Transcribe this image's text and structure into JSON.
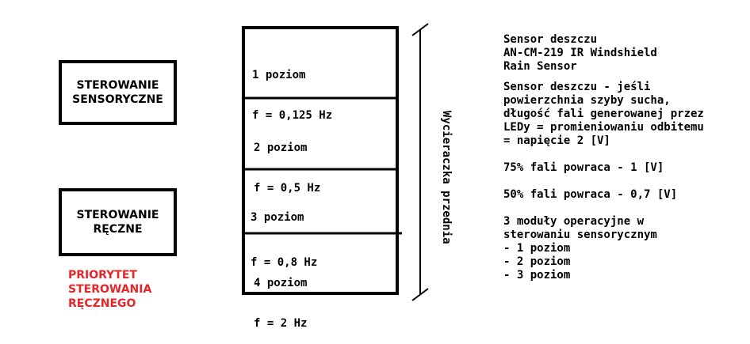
{
  "left_boxes": {
    "sensor": [
      "STEROWANIE",
      "SENSORYCZNE"
    ],
    "manual": [
      "STEROWANIE",
      "RĘCZNE"
    ]
  },
  "priority_note": [
    "PRIORYTET",
    "STEROWANIA",
    "RĘCZNEGO"
  ],
  "levels": [
    {
      "name": "1 poziom",
      "freq": "f = 0,125 Hz"
    },
    {
      "name": "2 poziom",
      "freq": "f = 0,5 Hz"
    },
    {
      "name": "3 poziom",
      "freq": "f = 0,8 Hz"
    },
    {
      "name": "4 poziom",
      "freq": "f = 2 Hz"
    }
  ],
  "wiper_label": "Wycieraczka przednia",
  "notes": {
    "title": [
      "Sensor deszczu",
      "AN-CM-219 IR Windshield",
      "Rain Sensor"
    ],
    "paragraph": [
      "Sensor deszczu - jeśli",
      "powierzchnia szyby sucha,",
      "długość fali generowanej przez",
      "LEDy = promieniowaniu odbitemu",
      "= napięcie 2 [V]"
    ],
    "p75": "75% fali powraca - 1 [V]",
    "p50": "50% fali powraca - 0,7 [V]",
    "modules": [
      "3 moduły operacyjne w",
      "sterowaniu sensorycznym",
      "- 1 poziom",
      "- 2 poziom",
      "- 3 poziom"
    ]
  },
  "colors": {
    "accent_red": "#e5262a",
    "stroke": "#000000"
  }
}
